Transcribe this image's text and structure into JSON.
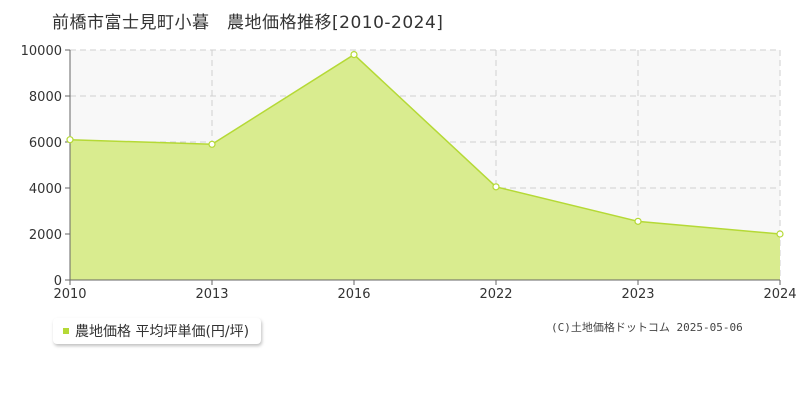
{
  "colors": {
    "fill": "#d9ec8f",
    "line": "#b5d936",
    "plot_bg": "#f8f8f8",
    "grid": "#cfcfcf"
  },
  "chart_data": {
    "type": "area",
    "title": "前橋市富士見町小暮　農地価格推移[2010-2024]",
    "x": [
      "2010",
      "2013",
      "2016",
      "2022",
      "2023",
      "2024"
    ],
    "series": [
      {
        "name": "農地価格 平均坪単価(円/坪)",
        "values": [
          6100,
          5900,
          9800,
          4050,
          2550,
          2000
        ]
      }
    ],
    "ylim": [
      0,
      10000
    ],
    "yticks": [
      0,
      2000,
      4000,
      6000,
      8000,
      10000
    ],
    "xlabel": "",
    "ylabel": "",
    "grid": true,
    "legend": "bottom-left"
  },
  "legend_label": "農地価格 平均坪単価(円/坪)",
  "copyright": "(C)土地価格ドットコム 2025-05-06"
}
